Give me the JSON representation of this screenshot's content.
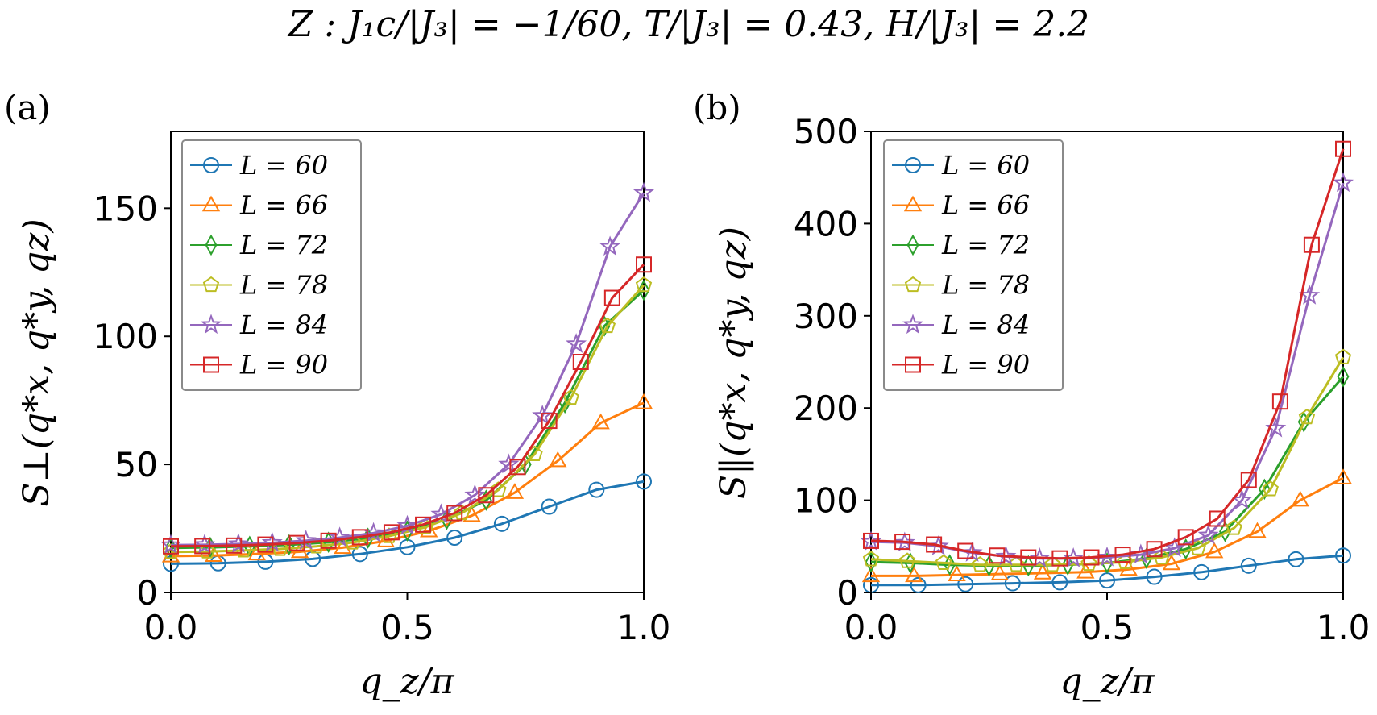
{
  "figure": {
    "title": "Z :  J₁c/|J₃| = −1/60,  T/|J₃| = 0.43,  H/|J₃| = 2.2"
  },
  "chart_data": [
    {
      "type": "line",
      "panel": "(a)",
      "xlabel": "q_z/π",
      "ylabel": "S⊥(q*x, q*y, qz)",
      "xlim": [
        0,
        1
      ],
      "ylim": [
        0,
        180
      ],
      "xticks": [
        0,
        0.5,
        1
      ],
      "xtick_labels": [
        "0.0",
        "0.5",
        "1.0"
      ],
      "yticks": [
        0,
        50,
        100,
        150
      ],
      "ytick_labels": [
        "0",
        "50",
        "100",
        "150"
      ],
      "legend_position": "top-left",
      "series": [
        {
          "name": "L = 60",
          "color": "#1f77b4",
          "marker": "circle",
          "x": [
            0,
            0.1,
            0.2,
            0.3,
            0.4,
            0.5,
            0.6,
            0.7,
            0.8,
            0.9,
            1.0
          ],
          "y": [
            11.2,
            11.4,
            12.0,
            13.1,
            15.0,
            17.7,
            21.4,
            26.8,
            33.5,
            40.1,
            43.3
          ]
        },
        {
          "name": "L = 66",
          "color": "#ff7f0e",
          "marker": "triangle",
          "x": [
            0,
            0.0909,
            0.1818,
            0.2727,
            0.3636,
            0.4545,
            0.5455,
            0.6364,
            0.7273,
            0.8182,
            0.9091,
            1.0
          ],
          "y": [
            14.2,
            14.4,
            15.0,
            15.9,
            17.5,
            20.1,
            24.0,
            30.0,
            39.0,
            51.4,
            66.2,
            74.0
          ]
        },
        {
          "name": "L = 72",
          "color": "#2ca02c",
          "marker": "diamond",
          "x": [
            0,
            0.0833,
            0.1667,
            0.25,
            0.3333,
            0.4167,
            0.5,
            0.5833,
            0.6667,
            0.75,
            0.8333,
            0.9167,
            1.0
          ],
          "y": [
            17.4,
            17.6,
            18.0,
            18.6,
            19.6,
            21.2,
            24.0,
            28.5,
            36.0,
            50.0,
            74.0,
            104.0,
            118.0
          ]
        },
        {
          "name": "L = 78",
          "color": "#bcbd22",
          "marker": "pentagon",
          "x": [
            0,
            0.0769,
            0.1538,
            0.2308,
            0.3077,
            0.3846,
            0.4615,
            0.5385,
            0.6154,
            0.6923,
            0.7692,
            0.8462,
            0.9231,
            1.0
          ],
          "y": [
            15.8,
            16.0,
            16.4,
            17.0,
            18.0,
            19.5,
            22.0,
            25.5,
            31.0,
            40.0,
            54.0,
            76.0,
            104.0,
            120.0
          ]
        },
        {
          "name": "L = 84",
          "color": "#9467bd",
          "marker": "star",
          "x": [
            0,
            0.0714,
            0.1429,
            0.2143,
            0.2857,
            0.3571,
            0.4286,
            0.5,
            0.5714,
            0.6429,
            0.7143,
            0.7857,
            0.8571,
            0.9286,
            1.0
          ],
          "y": [
            18.5,
            18.6,
            18.9,
            19.4,
            20.2,
            21.4,
            23.2,
            26.0,
            30.5,
            38.0,
            50.0,
            69.0,
            97.0,
            135.0,
            156.0
          ]
        },
        {
          "name": "L = 90",
          "color": "#d62728",
          "marker": "square",
          "x": [
            0,
            0.0667,
            0.1333,
            0.2,
            0.2667,
            0.3333,
            0.4,
            0.4667,
            0.5333,
            0.6,
            0.6667,
            0.7333,
            0.8,
            0.8667,
            0.9333,
            1.0
          ],
          "y": [
            18.0,
            18.1,
            18.3,
            18.7,
            19.3,
            20.2,
            21.6,
            23.5,
            26.5,
            31.0,
            38.0,
            49.0,
            67.0,
            90.0,
            115.0,
            128.0
          ]
        }
      ]
    },
    {
      "type": "line",
      "panel": "(b)",
      "xlabel": "q_z/π",
      "ylabel": "S‖(q*x, q*y, qz)",
      "xlim": [
        0,
        1
      ],
      "ylim": [
        0,
        500
      ],
      "xticks": [
        0,
        0.5,
        1
      ],
      "xtick_labels": [
        "0.0",
        "0.5",
        "1.0"
      ],
      "yticks": [
        0,
        100,
        200,
        300,
        400,
        500
      ],
      "ytick_labels": [
        "0",
        "100",
        "200",
        "300",
        "400",
        "500"
      ],
      "legend_position": "top-left",
      "series": [
        {
          "name": "L = 60",
          "color": "#1f77b4",
          "marker": "circle",
          "x": [
            0,
            0.1,
            0.2,
            0.3,
            0.4,
            0.5,
            0.6,
            0.7,
            0.8,
            0.9,
            1.0
          ],
          "y": [
            8,
            8,
            9,
            10,
            11,
            13,
            17,
            22,
            29,
            36,
            40
          ]
        },
        {
          "name": "L = 66",
          "color": "#ff7f0e",
          "marker": "triangle",
          "x": [
            0,
            0.0909,
            0.1818,
            0.2727,
            0.3636,
            0.4545,
            0.5455,
            0.6364,
            0.7273,
            0.8182,
            0.9091,
            1.0
          ],
          "y": [
            18,
            18,
            19,
            20,
            21,
            22,
            25,
            31,
            44,
            66,
            100,
            124
          ]
        },
        {
          "name": "L = 72",
          "color": "#2ca02c",
          "marker": "diamond",
          "x": [
            0,
            0.0833,
            0.1667,
            0.25,
            0.3333,
            0.4167,
            0.5,
            0.5833,
            0.6667,
            0.75,
            0.8333,
            0.9167,
            1.0
          ],
          "y": [
            33,
            32,
            30,
            29,
            29,
            30,
            32,
            37,
            47,
            66,
            112,
            185,
            234
          ]
        },
        {
          "name": "L = 78",
          "color": "#bcbd22",
          "marker": "pentagon",
          "x": [
            0,
            0.0769,
            0.1538,
            0.2308,
            0.3077,
            0.3846,
            0.4615,
            0.5385,
            0.6154,
            0.6923,
            0.7692,
            0.8462,
            0.9231,
            1.0
          ],
          "y": [
            36,
            34,
            32,
            30,
            30,
            30,
            31,
            33,
            38,
            48,
            70,
            112,
            190,
            255
          ]
        },
        {
          "name": "L = 84",
          "color": "#9467bd",
          "marker": "star",
          "x": [
            0,
            0.0714,
            0.1429,
            0.2143,
            0.2857,
            0.3571,
            0.4286,
            0.5,
            0.5714,
            0.6429,
            0.7143,
            0.7857,
            0.8571,
            0.9286,
            1.0
          ],
          "y": [
            55,
            54,
            50,
            43,
            39,
            37,
            37,
            38,
            41,
            48,
            62,
            100,
            178,
            322,
            444
          ]
        },
        {
          "name": "L = 90",
          "color": "#d62728",
          "marker": "square",
          "x": [
            0,
            0.0667,
            0.1333,
            0.2,
            0.2667,
            0.3333,
            0.4,
            0.4667,
            0.5333,
            0.6,
            0.6667,
            0.7333,
            0.8,
            0.8667,
            0.9333,
            1.0
          ],
          "y": [
            56,
            55,
            52,
            45,
            40,
            38,
            37,
            38,
            41,
            47,
            60,
            80,
            122,
            207,
            377,
            481
          ]
        }
      ]
    }
  ]
}
